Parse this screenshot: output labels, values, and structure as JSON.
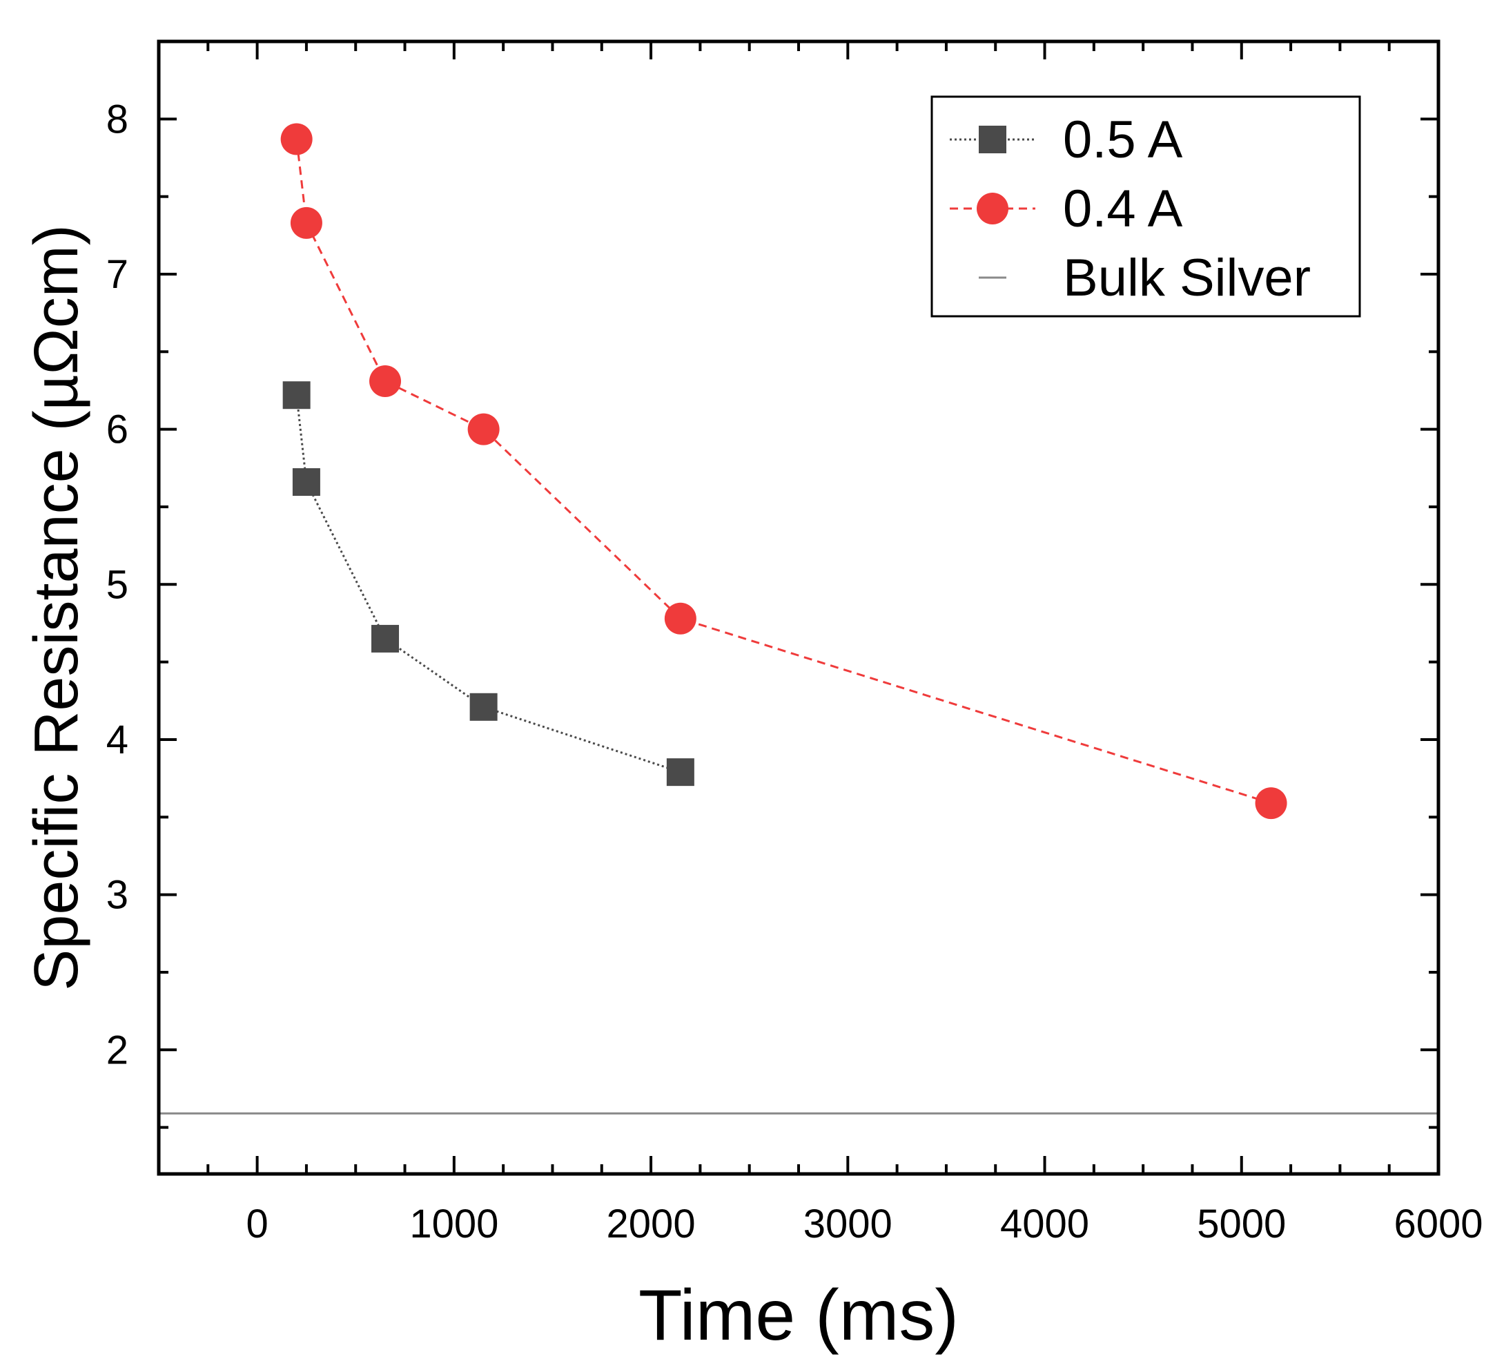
{
  "chart_data": {
    "type": "line",
    "xlabel": "Time (ms)",
    "ylabel": "Specific Resistance (µΩcm)",
    "xlim": [
      -500,
      6000
    ],
    "ylim": [
      1.2,
      8.5
    ],
    "x_ticks": [
      0,
      1000,
      2000,
      3000,
      4000,
      5000,
      6000
    ],
    "x_tick_labels": [
      "0",
      "1000",
      "2000",
      "3000",
      "4000",
      "5000",
      "6000"
    ],
    "y_ticks": [
      2,
      3,
      4,
      5,
      6,
      7,
      8
    ],
    "y_tick_labels": [
      "2",
      "3",
      "4",
      "5",
      "6",
      "7",
      "8"
    ],
    "legend_position": "top-right",
    "series": [
      {
        "name": "0.5 A",
        "marker": "square",
        "line": "dotted",
        "color": "#4a4a4a",
        "x": [
          200,
          250,
          650,
          1150,
          2150
        ],
        "y": [
          6.22,
          5.66,
          4.65,
          4.21,
          3.79
        ]
      },
      {
        "name": "0.4 A",
        "marker": "circle",
        "line": "dashed",
        "color": "#ef3b3b",
        "x": [
          200,
          250,
          650,
          1150,
          2150,
          5150
        ],
        "y": [
          7.87,
          7.33,
          6.31,
          6.0,
          4.78,
          3.59
        ]
      },
      {
        "name": "Bulk Silver",
        "marker": "none",
        "line": "solid",
        "color": "#8a8a8a",
        "hline": 1.59
      }
    ]
  }
}
